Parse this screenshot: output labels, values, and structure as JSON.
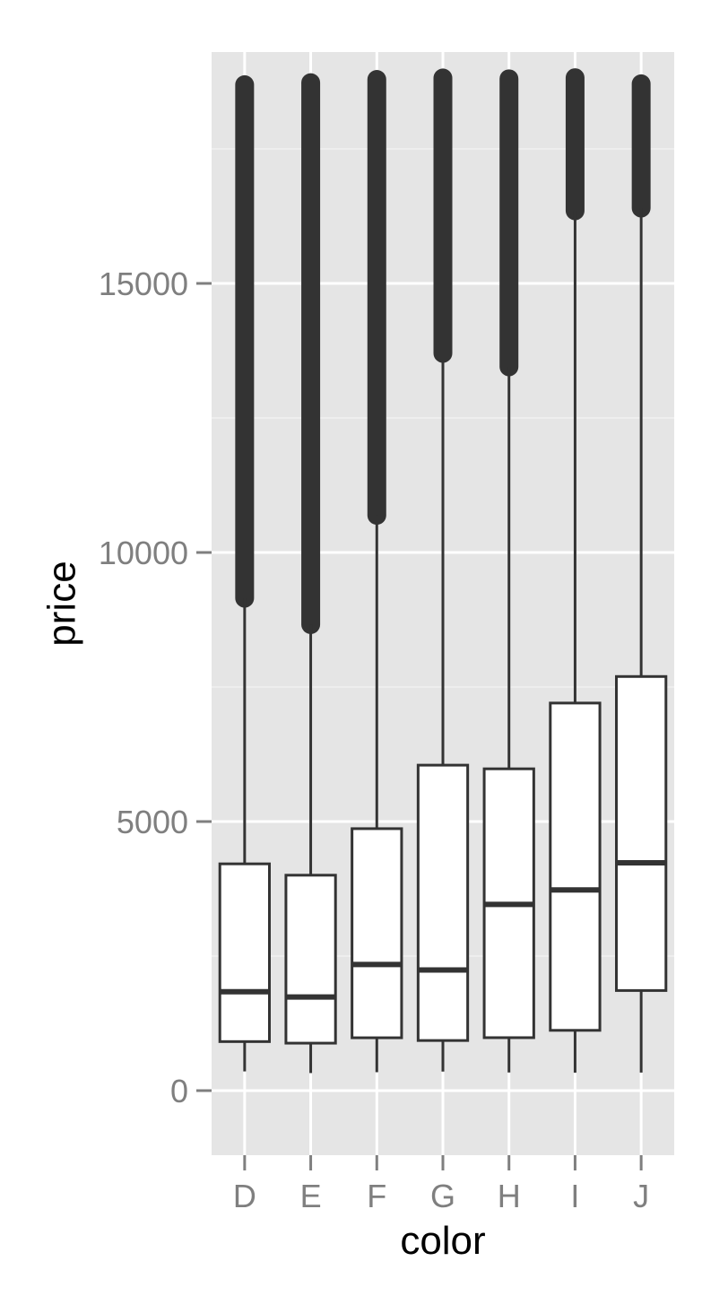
{
  "chart_data": {
    "type": "boxplot",
    "title": "",
    "xlabel": "color",
    "ylabel": "price",
    "categories": [
      "D",
      "E",
      "F",
      "G",
      "H",
      "I",
      "J"
    ],
    "ylim": [
      -1200,
      19300
    ],
    "yticks": [
      0,
      5000,
      10000,
      15000
    ],
    "ytick_labels": [
      "0",
      "5000",
      "10000",
      "15000"
    ],
    "grid": true,
    "legend": "none",
    "boxes": [
      {
        "category": "D",
        "whisker_low": 357,
        "q1": 911,
        "median": 1838,
        "q3": 4214,
        "whisker_high": 9150,
        "outlier_low": 9150,
        "outlier_high": 18693
      },
      {
        "category": "E",
        "whisker_low": 326,
        "q1": 882,
        "median": 1739,
        "q3": 4003,
        "whisker_high": 8660,
        "outlier_low": 8660,
        "outlier_high": 18731
      },
      {
        "category": "F",
        "whisker_low": 342,
        "q1": 982,
        "median": 2344,
        "q3": 4868,
        "whisker_high": 10690,
        "outlier_low": 10690,
        "outlier_high": 18791
      },
      {
        "category": "G",
        "whisker_low": 354,
        "q1": 931,
        "median": 2242,
        "q3": 6048,
        "whisker_high": 13700,
        "outlier_low": 13700,
        "outlier_high": 18818
      },
      {
        "category": "H",
        "whisker_low": 337,
        "q1": 984,
        "median": 3460,
        "q3": 5980,
        "whisker_high": 13450,
        "outlier_low": 13450,
        "outlier_high": 18803
      },
      {
        "category": "I",
        "whisker_low": 334,
        "q1": 1120,
        "median": 3730,
        "q3": 7202,
        "whisker_high": 16350,
        "outlier_low": 16350,
        "outlier_high": 18823
      },
      {
        "category": "J",
        "whisker_low": 335,
        "q1": 1860,
        "median": 4234,
        "q3": 7695,
        "whisker_high": 16400,
        "outlier_low": 16400,
        "outlier_high": 18710
      }
    ],
    "colors": {
      "panel_background": "#e5e5e5",
      "grid_major": "#ffffff",
      "grid_minor": "#f2f2f2",
      "box_fill": "#ffffff",
      "box_stroke": "#333333",
      "outlier": "#333333",
      "tick_text": "#7f7f7f",
      "axis_title": "#000000"
    }
  }
}
